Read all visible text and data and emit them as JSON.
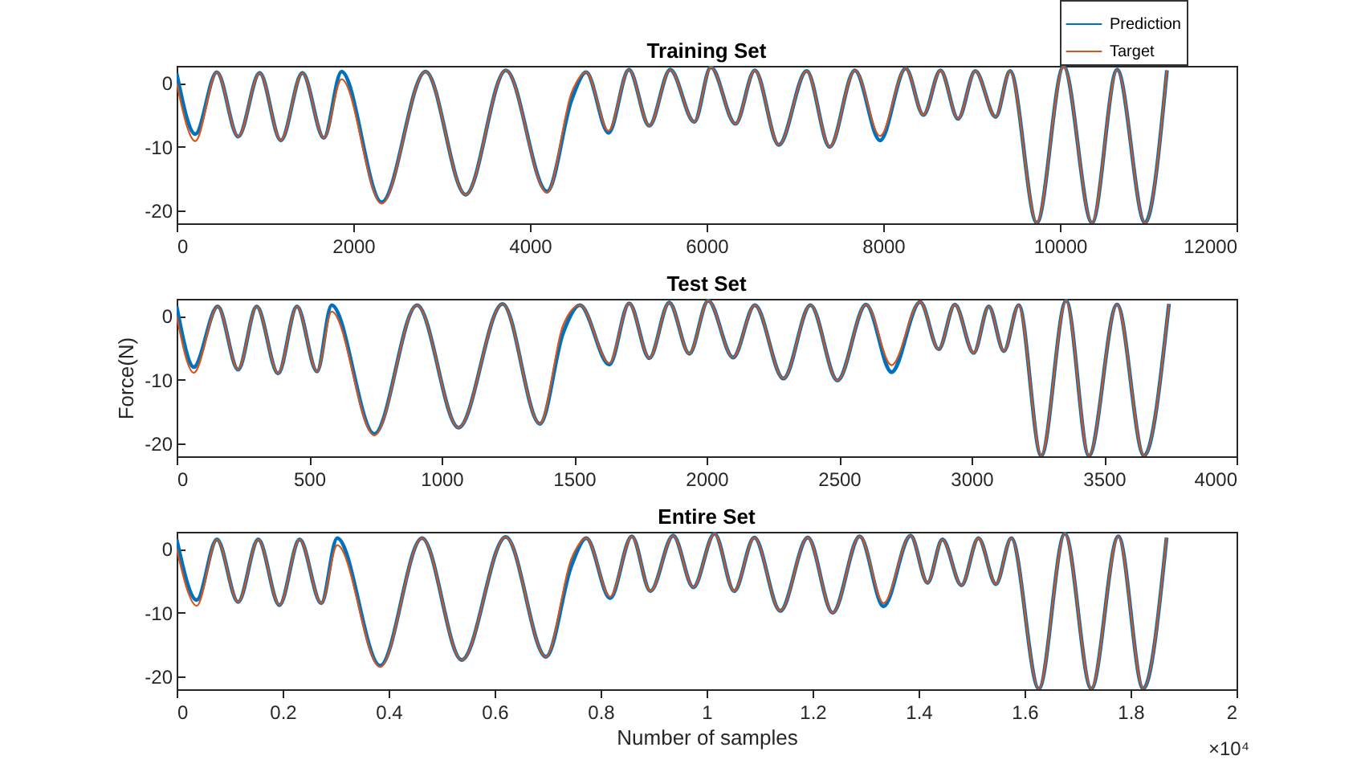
{
  "chart_data": [
    {
      "type": "line",
      "title": "Training Set",
      "legend": "top right",
      "xlim": [
        0,
        12000
      ],
      "xticks": [
        0,
        2000,
        4000,
        6000,
        8000,
        10000,
        12000
      ],
      "ylim": [
        -22,
        2.7
      ],
      "yticks": [
        -20,
        -10,
        0
      ],
      "x": [
        0,
        212,
        455,
        697,
        940,
        1180,
        1424,
        1667,
        1867,
        2321,
        2818,
        3272,
        3727,
        4194,
        4472,
        4636,
        4890,
        5121,
        5351,
        5588,
        5861,
        6048,
        6327,
        6546,
        6818,
        7133,
        7394,
        7679,
        7964,
        8255,
        8455,
        8648,
        8848,
        9042,
        9273,
        9436,
        9739,
        10042,
        10364,
        10648,
        10964,
        11212
      ],
      "series": [
        {
          "name": "Prediction",
          "color": "#0072bd",
          "values": [
            1.5,
            -8.0,
            1.7,
            -8.4,
            1.6,
            -9.0,
            1.6,
            -8.6,
            1.8,
            -18.7,
            1.8,
            -17.5,
            2.0,
            -17.0,
            -2.6,
            1.7,
            -7.8,
            2.1,
            -6.7,
            2.1,
            -6.1,
            2.5,
            -6.4,
            2.0,
            -9.7,
            1.9,
            -10.0,
            2.0,
            -9.0,
            2.3,
            -5.0,
            2.0,
            -5.6,
            1.9,
            -5.3,
            1.9,
            -21.9,
            2.6,
            -21.9,
            2.1,
            -21.9,
            2.0
          ]
        },
        {
          "name": "Target",
          "color": "#d95319",
          "values": [
            0,
            -9.1,
            1.7,
            -8.4,
            1.6,
            -9.0,
            1.6,
            -8.6,
            0.6,
            -18.9,
            1.8,
            -17.5,
            2.0,
            -17.2,
            -1.5,
            1.7,
            -7.5,
            2.1,
            -6.7,
            2.1,
            -6.1,
            2.5,
            -6.4,
            2.0,
            -9.7,
            1.9,
            -10.0,
            2.0,
            -8.3,
            2.3,
            -5.0,
            2.0,
            -5.6,
            1.9,
            -5.3,
            1.9,
            -21.9,
            2.6,
            -21.9,
            2.1,
            -21.9,
            2.0
          ]
        }
      ]
    },
    {
      "type": "line",
      "title": "Test Set",
      "ylabel": "Force(N)",
      "xlim": [
        0,
        4000
      ],
      "xticks": [
        0,
        500,
        1000,
        1500,
        2000,
        2500,
        3000,
        3500,
        4000
      ],
      "ylim": [
        -22,
        2.7
      ],
      "yticks": [
        -20,
        -10,
        0
      ],
      "x": [
        0,
        65,
        155,
        232,
        302,
        383,
        454,
        530,
        585,
        746,
        907,
        1064,
        1230,
        1371,
        1458,
        1522,
        1633,
        1708,
        1784,
        1859,
        1935,
        2006,
        2100,
        2182,
        2290,
        2392,
        2494,
        2602,
        2698,
        2806,
        2876,
        2937,
        3008,
        3065,
        3122,
        3178,
        3263,
        3357,
        3443,
        3549,
        3651,
        3745
      ],
      "series": [
        {
          "color": "#0072bd",
          "values": [
            1.5,
            -8.0,
            1.5,
            -8.4,
            1.5,
            -9.0,
            1.5,
            -8.7,
            1.7,
            -18.5,
            1.7,
            -17.5,
            1.9,
            -16.9,
            -2.7,
            1.7,
            -7.6,
            2.0,
            -6.6,
            2.1,
            -5.9,
            2.4,
            -6.5,
            1.7,
            -9.8,
            1.7,
            -10.1,
            1.8,
            -8.8,
            2.2,
            -5.2,
            1.8,
            -5.8,
            1.5,
            -5.5,
            1.7,
            -21.9,
            2.4,
            -21.9,
            1.8,
            -21.9,
            1.9
          ]
        },
        {
          "color": "#d95319",
          "values": [
            0,
            -8.9,
            1.5,
            -8.4,
            1.5,
            -9.0,
            1.5,
            -8.7,
            0.7,
            -18.7,
            1.7,
            -17.5,
            1.9,
            -16.9,
            -1.5,
            1.7,
            -7.4,
            2.0,
            -6.6,
            2.1,
            -5.9,
            2.4,
            -6.5,
            1.7,
            -9.8,
            1.7,
            -10.1,
            1.8,
            -7.7,
            2.2,
            -5.2,
            1.8,
            -5.8,
            1.5,
            -5.5,
            1.7,
            -21.9,
            2.4,
            -21.9,
            1.8,
            -21.9,
            1.9
          ]
        }
      ]
    },
    {
      "type": "line",
      "title": "Entire Set",
      "xlabel": "Number of samples",
      "annotations": [
        "×10⁴"
      ],
      "xlim": [
        0,
        2
      ],
      "xticks": [
        0,
        0.2,
        0.4,
        0.6,
        0.8,
        1,
        1.2,
        1.4,
        1.6,
        1.8,
        2
      ],
      "ylim": [
        -22,
        2.7
      ],
      "yticks": [
        -20,
        -10,
        0
      ],
      "x": [
        0,
        0.038,
        0.076,
        0.116,
        0.154,
        0.194,
        0.232,
        0.273,
        0.303,
        0.384,
        0.463,
        0.538,
        0.621,
        0.697,
        0.745,
        0.773,
        0.818,
        0.859,
        0.894,
        0.937,
        0.975,
        1.015,
        1.052,
        1.09,
        1.139,
        1.191,
        1.238,
        1.289,
        1.334,
        1.385,
        1.417,
        1.445,
        1.481,
        1.513,
        1.546,
        1.575,
        1.627,
        1.676,
        1.726,
        1.777,
        1.824,
        1.868
      ],
      "series": [
        {
          "color": "#0072bd",
          "values": [
            1.5,
            -8.0,
            1.5,
            -8.3,
            1.5,
            -8.8,
            1.5,
            -8.5,
            1.7,
            -18.3,
            1.7,
            -17.4,
            1.9,
            -16.9,
            -2.6,
            1.7,
            -7.7,
            2.0,
            -6.6,
            2.1,
            -6.0,
            2.4,
            -6.6,
            1.8,
            -9.7,
            1.8,
            -10.0,
            2.0,
            -9.0,
            2.1,
            -5.3,
            1.5,
            -5.7,
            1.7,
            -5.5,
            1.7,
            -21.9,
            2.4,
            -21.9,
            2.0,
            -21.9,
            1.8
          ]
        },
        {
          "color": "#d95319",
          "values": [
            0,
            -8.9,
            1.5,
            -8.3,
            1.5,
            -8.8,
            1.5,
            -8.5,
            0.6,
            -18.5,
            1.7,
            -17.4,
            1.9,
            -16.9,
            -1.5,
            1.7,
            -7.5,
            2.0,
            -6.6,
            2.1,
            -6.0,
            2.4,
            -6.6,
            1.8,
            -9.7,
            1.8,
            -10.0,
            2.0,
            -8.5,
            2.1,
            -5.3,
            1.5,
            -5.7,
            1.7,
            -5.5,
            1.7,
            -21.9,
            2.4,
            -21.9,
            2.0,
            -21.9,
            1.8
          ]
        }
      ]
    }
  ]
}
